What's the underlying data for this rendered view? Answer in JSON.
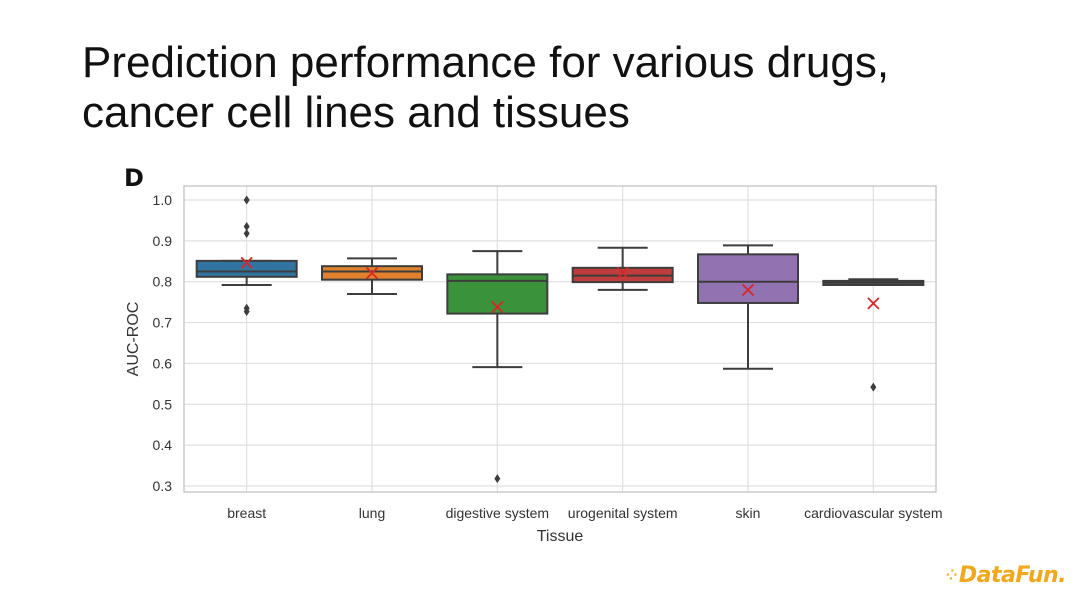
{
  "slide": {
    "title_line1": "Prediction performance for various drugs,",
    "title_line2": "cancer cell lines and tissues",
    "logo_text": "DataFun."
  },
  "colors": {
    "breast": "#3274a1",
    "lung": "#e1812c",
    "digestive": "#3a923a",
    "urogenital": "#c03d3e",
    "skin": "#9372b2",
    "cardiovascular": "#505050",
    "mean_marker": "#d62728",
    "logo": "#f2a81a"
  },
  "chart_data": {
    "type": "box",
    "panel_label": "D",
    "xlabel": "Tissue",
    "ylabel": "AUC-ROC",
    "ylim": [
      0.3,
      1.0
    ],
    "yticks": [
      "1.0",
      "0.9",
      "0.8",
      "0.7",
      "0.6",
      "0.5",
      "0.4",
      "0.3"
    ],
    "grid": true,
    "categories": [
      "breast",
      "lung",
      "digestive system",
      "urogenital system",
      "skin",
      "cardiovascular system"
    ],
    "boxes": [
      {
        "category": "breast",
        "whisker_low": 0.792,
        "q1": 0.812,
        "median": 0.825,
        "q3": 0.851,
        "whisker_high": 0.851,
        "mean": 0.846,
        "outliers": [
          1.0,
          0.935,
          0.918,
          0.735,
          0.727
        ],
        "color": "#3274a1"
      },
      {
        "category": "lung",
        "whisker_low": 0.77,
        "q1": 0.805,
        "median": 0.825,
        "q3": 0.838,
        "whisker_high": 0.857,
        "mean": 0.821,
        "outliers": [],
        "color": "#e1812c"
      },
      {
        "category": "digestive system",
        "whisker_low": 0.591,
        "q1": 0.722,
        "median": 0.802,
        "q3": 0.818,
        "whisker_high": 0.875,
        "mean": 0.738,
        "outliers": [
          0.318
        ],
        "color": "#3a923a"
      },
      {
        "category": "urogenital system",
        "whisker_low": 0.78,
        "q1": 0.799,
        "median": 0.815,
        "q3": 0.834,
        "whisker_high": 0.883,
        "mean": 0.822,
        "outliers": [],
        "color": "#c03d3e"
      },
      {
        "category": "skin",
        "whisker_low": 0.587,
        "q1": 0.748,
        "median": 0.8,
        "q3": 0.867,
        "whisker_high": 0.889,
        "mean": 0.78,
        "outliers": [],
        "color": "#9372b2"
      },
      {
        "category": "cardiovascular system",
        "whisker_low": 0.792,
        "q1": 0.792,
        "median": 0.798,
        "q3": 0.802,
        "whisker_high": 0.806,
        "mean": 0.747,
        "outliers": [
          0.542
        ],
        "color": "#505050"
      }
    ]
  }
}
